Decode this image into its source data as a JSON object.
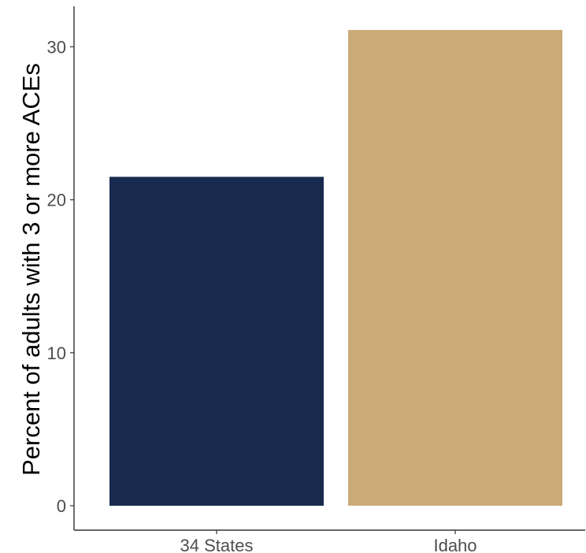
{
  "chart_data": {
    "type": "bar",
    "title": "",
    "xlabel": "",
    "ylabel": "Percent of adults with 3 or more ACEs",
    "categories": [
      "34 States",
      "Idaho"
    ],
    "values": [
      21.5,
      31.1
    ],
    "colors": [
      "#182A4D",
      "#CBAA78"
    ],
    "ylim": [
      0,
      32.5
    ],
    "yticks": [
      0,
      10,
      20,
      30
    ],
    "grid": false,
    "legend": "none"
  }
}
